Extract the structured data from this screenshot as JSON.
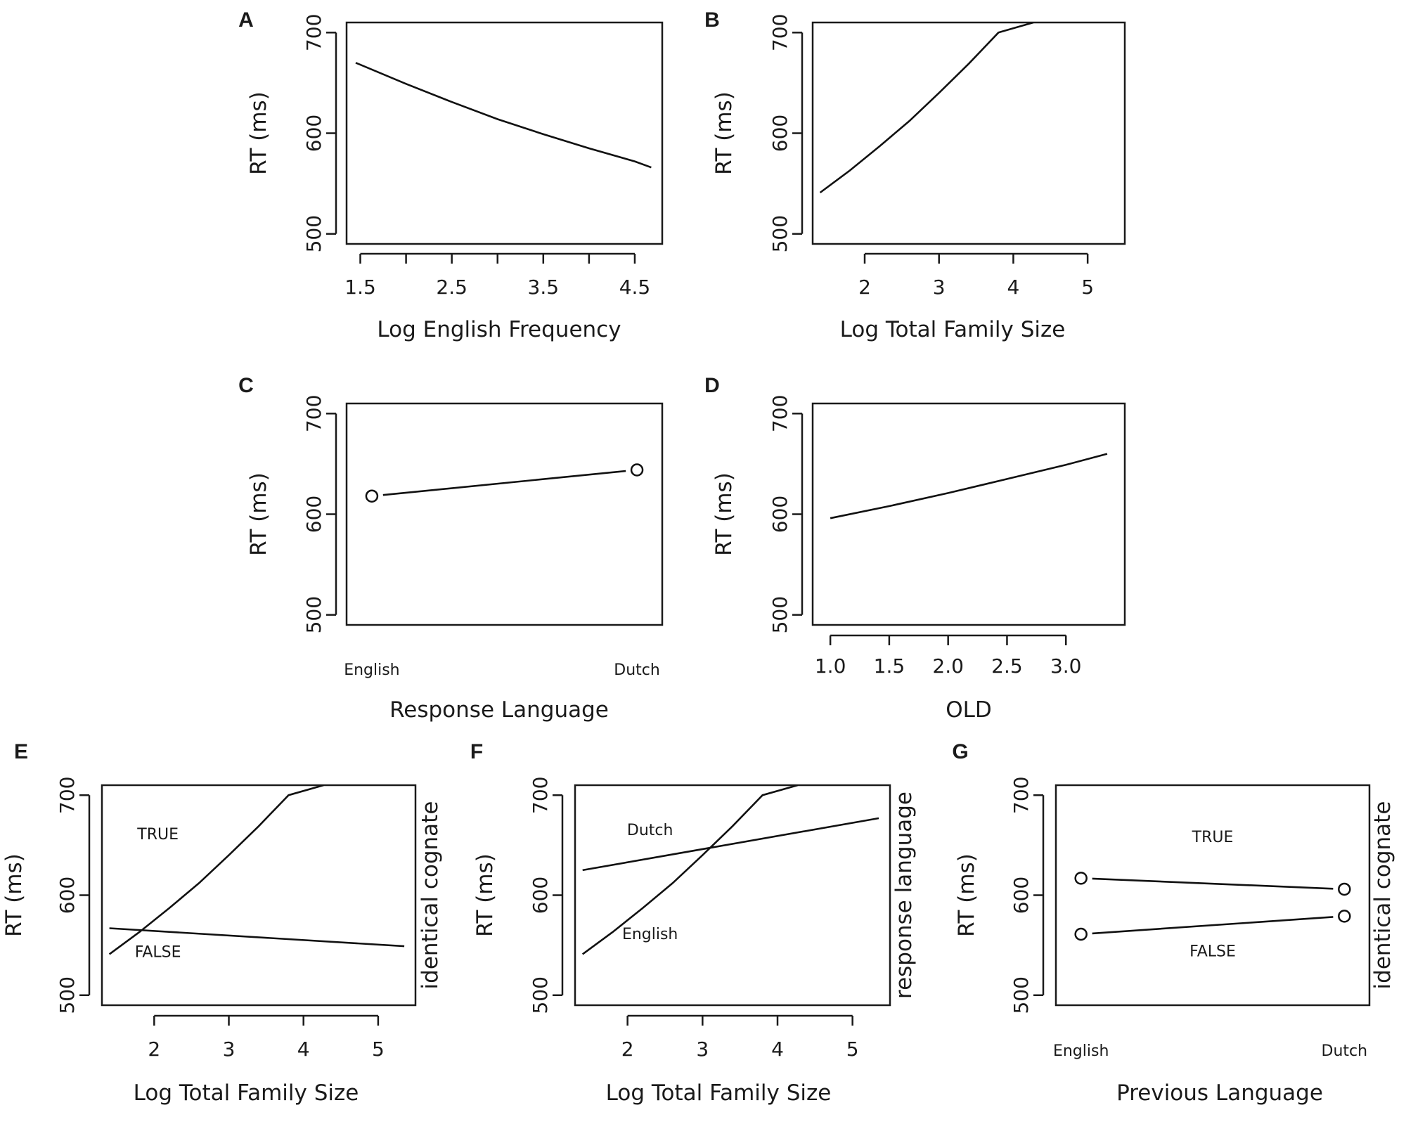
{
  "chart_data": [
    {
      "panel": "A",
      "type": "line",
      "xlabel": "Log English Frequency",
      "ylabel": "RT (ms)",
      "xlim": [
        1.35,
        4.8
      ],
      "ylim": [
        490,
        710
      ],
      "xticks": [
        1.5,
        2,
        2.5,
        3,
        3.5,
        4,
        4.5
      ],
      "xtick_labels": [
        "1.5",
        "",
        "2.5",
        "",
        "3.5",
        "",
        "4.5"
      ],
      "yticks": [
        500,
        600,
        700
      ],
      "ytick_labels": [
        "500",
        "600",
        "700"
      ],
      "series": [
        {
          "name": "",
          "x": [
            1.45,
            2.0,
            2.5,
            3.0,
            3.5,
            4.0,
            4.5,
            4.68
          ],
          "y": [
            670,
            649,
            631,
            614,
            599,
            585,
            572,
            566
          ]
        }
      ]
    },
    {
      "panel": "B",
      "type": "line",
      "xlabel": "Log Total Family Size",
      "ylabel": "RT (ms)",
      "xlim": [
        1.3,
        5.5
      ],
      "ylim": [
        490,
        710
      ],
      "xticks": [
        2,
        3,
        4,
        5
      ],
      "xtick_labels": [
        "2",
        "3",
        "4",
        "5"
      ],
      "yticks": [
        500,
        600,
        700
      ],
      "ytick_labels": [
        "500",
        "600",
        "700"
      ],
      "series": [
        {
          "name": "",
          "x": [
            1.4,
            1.8,
            2.2,
            2.6,
            3.0,
            3.4,
            3.8,
            4.27
          ],
          "y": [
            541,
            563,
            587,
            612,
            640,
            669,
            700,
            710
          ]
        }
      ]
    },
    {
      "panel": "C",
      "type": "line",
      "xlabel": "Response Language",
      "ylabel": "RT (ms)",
      "categories": [
        "English",
        "Dutch"
      ],
      "ylim": [
        490,
        710
      ],
      "yticks": [
        500,
        600,
        700
      ],
      "ytick_labels": [
        "500",
        "600",
        "700"
      ],
      "series": [
        {
          "name": "",
          "values": [
            618,
            644
          ]
        }
      ]
    },
    {
      "panel": "D",
      "type": "line",
      "xlabel": "OLD",
      "ylabel": "RT (ms)",
      "xlim": [
        0.85,
        3.5
      ],
      "ylim": [
        490,
        710
      ],
      "xticks": [
        1.0,
        1.5,
        2.0,
        2.5,
        3.0
      ],
      "xtick_labels": [
        "1.0",
        "1.5",
        "2.0",
        "2.5",
        "3.0"
      ],
      "yticks": [
        500,
        600,
        700
      ],
      "ytick_labels": [
        "500",
        "600",
        "700"
      ],
      "series": [
        {
          "name": "",
          "x": [
            1.0,
            1.5,
            2.0,
            2.5,
            3.0,
            3.35
          ],
          "y": [
            596,
            608,
            621,
            635,
            649,
            660
          ]
        }
      ]
    },
    {
      "panel": "E",
      "type": "line",
      "xlabel": "Log Total Family Size",
      "ylabel": "RT (ms)",
      "right_label": "identical cognate",
      "xlim": [
        1.3,
        5.5
      ],
      "ylim": [
        490,
        710
      ],
      "xticks": [
        2,
        3,
        4,
        5
      ],
      "xtick_labels": [
        "2",
        "3",
        "4",
        "5"
      ],
      "yticks": [
        500,
        600,
        700
      ],
      "ytick_labels": [
        "500",
        "600",
        "700"
      ],
      "series": [
        {
          "name": "TRUE",
          "x": [
            1.4,
            1.8,
            2.2,
            2.6,
            3.0,
            3.4,
            3.8,
            4.27
          ],
          "y": [
            541,
            563,
            587,
            612,
            640,
            669,
            700,
            710
          ]
        },
        {
          "name": "FALSE",
          "x": [
            1.4,
            5.35
          ],
          "y": [
            567,
            549
          ]
        }
      ]
    },
    {
      "panel": "F",
      "type": "line",
      "xlabel": "Log Total Family Size",
      "ylabel": "RT (ms)",
      "right_label": "response language",
      "xlim": [
        1.3,
        5.5
      ],
      "ylim": [
        490,
        710
      ],
      "xticks": [
        2,
        3,
        4,
        5
      ],
      "xtick_labels": [
        "2",
        "3",
        "4",
        "5"
      ],
      "yticks": [
        500,
        600,
        700
      ],
      "ytick_labels": [
        "500",
        "600",
        "700"
      ],
      "series": [
        {
          "name": "Dutch",
          "x": [
            1.4,
            5.35
          ],
          "y": [
            625,
            677
          ]
        },
        {
          "name": "English",
          "x": [
            1.4,
            1.8,
            2.2,
            2.6,
            3.0,
            3.4,
            3.8,
            4.27
          ],
          "y": [
            541,
            563,
            587,
            612,
            640,
            669,
            700,
            710
          ]
        }
      ]
    },
    {
      "panel": "G",
      "type": "line",
      "xlabel": "Previous Language",
      "ylabel": "RT (ms)",
      "right_label": "identical cognate",
      "categories": [
        "English",
        "Dutch"
      ],
      "ylim": [
        490,
        710
      ],
      "yticks": [
        500,
        600,
        700
      ],
      "ytick_labels": [
        "500",
        "600",
        "700"
      ],
      "series": [
        {
          "name": "TRUE",
          "values": [
            617,
            606
          ]
        },
        {
          "name": "FALSE",
          "values": [
            561,
            579
          ]
        }
      ]
    }
  ]
}
